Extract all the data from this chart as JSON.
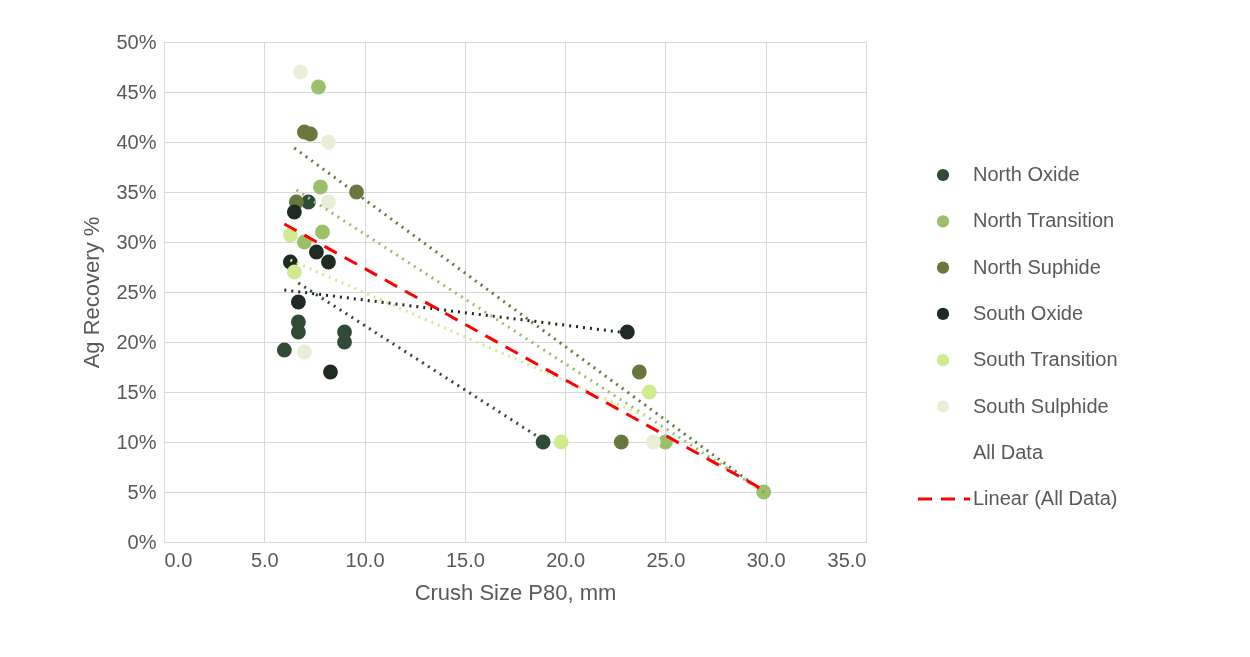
{
  "chart_data": {
    "type": "scatter",
    "xlabel": "Crush Size P80, mm",
    "ylabel": "Ag Recovery %",
    "xlim": [
      0,
      35
    ],
    "xticks": [
      {
        "value": 0,
        "label": "0.0"
      },
      {
        "value": 5,
        "label": "5.0"
      },
      {
        "value": 10,
        "label": "10.0"
      },
      {
        "value": 15,
        "label": "15.0"
      },
      {
        "value": 20,
        "label": "20.0"
      },
      {
        "value": 25,
        "label": "25.0"
      },
      {
        "value": 30,
        "label": "30.0"
      },
      {
        "value": 35,
        "label": "35.0"
      }
    ],
    "ylim": [
      0,
      50
    ],
    "yticks": [
      {
        "value": 0,
        "label": "0%"
      },
      {
        "value": 5,
        "label": "5%"
      },
      {
        "value": 10,
        "label": "10%"
      },
      {
        "value": 15,
        "label": "15%"
      },
      {
        "value": 20,
        "label": "20%"
      },
      {
        "value": 25,
        "label": "25%"
      },
      {
        "value": 30,
        "label": "30%"
      },
      {
        "value": 35,
        "label": "35%"
      },
      {
        "value": 40,
        "label": "40%"
      },
      {
        "value": 45,
        "label": "45%"
      },
      {
        "value": 50,
        "label": "50%"
      }
    ],
    "grid": true,
    "legend": "right",
    "marker": "circle",
    "series": [
      {
        "name": "North Oxide",
        "color": "#2f4a35",
        "x": [
          6.7,
          6.7,
          9.0,
          9.0,
          7.2,
          18.9,
          6.0
        ],
        "values": [
          21,
          22,
          20,
          21,
          34,
          10,
          19.2
        ]
      },
      {
        "name": "North Transition",
        "color": "#9cbf6c",
        "x": [
          7.7,
          7.8,
          7.9,
          7.0,
          25.0,
          29.9
        ],
        "values": [
          45.5,
          35.5,
          31,
          30,
          10,
          5
        ]
      },
      {
        "name": "North Suphide",
        "color": "#68783d",
        "x": [
          7.0,
          7.3,
          9.6,
          6.6,
          23.7,
          22.8
        ],
        "values": [
          41,
          40.8,
          35,
          34,
          17,
          10
        ]
      },
      {
        "name": "South Oxide",
        "color": "#1f2a22",
        "x": [
          6.5,
          6.3,
          7.6,
          8.2,
          6.7,
          8.3,
          23.1
        ],
        "values": [
          33,
          28,
          29,
          28,
          24,
          17,
          21
        ]
      },
      {
        "name": "South Transition",
        "color": "#cfea8f",
        "x": [
          6.3,
          6.5,
          24.2,
          19.8
        ],
        "values": [
          30.7,
          27,
          15,
          10
        ]
      },
      {
        "name": "South Sulphide",
        "color": "#e9efd6",
        "x": [
          6.8,
          8.2,
          8.2,
          7.0,
          24.4
        ],
        "values": [
          47,
          40,
          34,
          19,
          10
        ]
      },
      {
        "name": "All Data",
        "color": null
      },
      {
        "type": "line",
        "color": "#2f4a35",
        "line_style": "dotted",
        "marker": "none",
        "x": [
          6.7,
          18.9
        ],
        "values": [
          25.9,
          10.2
        ]
      },
      {
        "type": "line",
        "color": "#1f2a22",
        "line_style": "dotted",
        "marker": "none",
        "x": [
          6.0,
          23.1
        ],
        "values": [
          25.2,
          20.9
        ]
      },
      {
        "type": "line",
        "color": "#68783d",
        "line_style": "dotted",
        "marker": "none",
        "x": [
          6.5,
          29.9
        ],
        "values": [
          39.4,
          5
        ]
      },
      {
        "type": "line",
        "color": "#9cbf6c",
        "line_style": "dotted",
        "marker": "none",
        "x": [
          6.6,
          29.9
        ],
        "values": [
          35.2,
          5
        ]
      },
      {
        "type": "line",
        "color": "#cfea8f",
        "line_style": "dotted",
        "marker": "none",
        "x": [
          6.3,
          24.2
        ],
        "values": [
          28.2,
          12.4
        ]
      },
      {
        "name": "Linear (All Data)",
        "type": "line",
        "color": "#ff0000",
        "line_style": "dashed",
        "marker": "none",
        "x": [
          6.0,
          29.9
        ],
        "values": [
          31.8,
          5.2
        ]
      }
    ]
  }
}
